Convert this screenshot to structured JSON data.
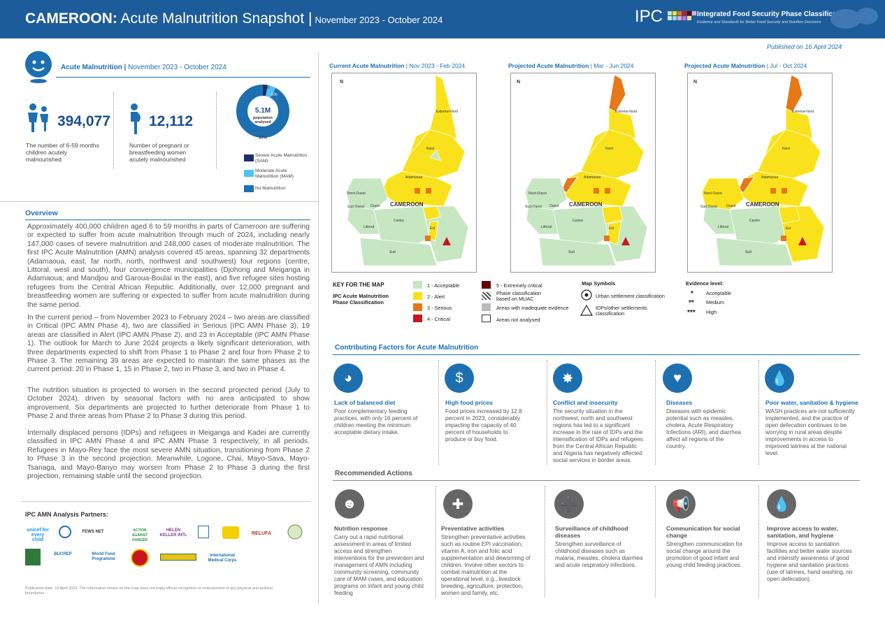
{
  "header": {
    "country": "CAMEROON:",
    "title": "Acute Malnutrition Snapshot |",
    "period": "November 2023 - October 2024",
    "ipc_logo": "IPC",
    "ipc_name": "Integrated Food Security Phase Classification",
    "ipc_tagline": "Evidence and Standards for Better Food Security and Nutrition Decisions"
  },
  "published": "Published on 16 April 2024",
  "acute_section": {
    "label": "Acute Malnutrition |",
    "period": "November 2023 - October 2024",
    "children_value": "394,077",
    "children_desc": "The number of 6-59 months children acutely malnourished",
    "women_value": "12,112",
    "women_desc": "Number of pregnant or breastfeeding women acutely malnourished",
    "donut_center_value": "5.1M",
    "donut_center_label": "population analysed",
    "donut_pct_sam": "3%",
    "donut_pct_mam": "5%",
    "donut_pct_none": "92%",
    "donut_values": {
      "sam": 3,
      "mam": 5,
      "none": 92
    },
    "legend": [
      {
        "label": "Severe Acute Malnutrition (SAM)",
        "color": "#1c2f6b"
      },
      {
        "label": "Moderate Acute Malnutrition (MAM)",
        "color": "#4fc3f7"
      },
      {
        "label": "No Malnutrition",
        "color": "#1d6fb0"
      }
    ]
  },
  "overview": {
    "title": "Overview",
    "p1": "Approximately 400,000 children aged 6 to 59 months in parts of Cameroon are suffering or expected to suffer from acute malnutrition through much of 2024, including nearly 147,000 cases of severe malnutrition and 248,000 cases of moderate malnutrition. The first IPC Acute Malnutrition (AMN) analysis covered 45 areas, spanning 32 departments (Adamaoua, east, far north, north, northwest and southwest) four regions (centre, Littoral, west and south), four convergence municipalities (Djohong and Meiganga in Adamaoua; and Mandjou and Garoua-Boulaï in the east), and five refugee sites hosting refugees from the Central African Republic. Additionally, over 12,000 pregnant and breastfeeding women are suffering or expected to suffer from acute malnutrition during the same period.",
    "p2": "In the current period – from November 2023 to February 2024 – two areas are classified in Critical (IPC AMN Phase 4), two are classified in Serious (IPC AMN Phase 3), 19 areas are classified in Alert (IPC AMN Phase 2), and 23 in Acceptable (IPC AMN Phase 1). The outlook for March to June 2024 projects a likely significant deterioration, with three departments expected to shift from Phase 1 to Phase 2 and four from Phase 2 to Phase 3. The remaining 39 areas are expected to maintain the same phases as the current period: 20 in Phase 1, 15 in Phase 2, two in Phase 3, and two in Phase 4.",
    "p3": "The nutrition situation is projected to worsen in the second projected period (July to October 2024), driven by seasonal factors with no area anticipated to show improvement. Six departments are projected to further deteriorate from Phase 1 to Phase 2 and three areas from Phase 2 to Phase 3 during this period.",
    "p4": "Internally displaced persons (IDPs) and refugees in Meiganga and Kadei are currently classified in IPC AMN Phase 4 and IPC AMN Phase 3 respectively, in all periods. Refugees in Mayo-Rey face the most severe AMN situation, transitioning from Phase 2 to Phase 3 in the second projection. Meanwhile, Logone, Chai, Mayo-Sava, Mayo-Tsanaga, and Mayo-Banyo may worsen from Phase 2 to Phase 3 during the first projection, remaining stable until the second projection."
  },
  "partners": {
    "title": "IPC AMN Analysis Partners:",
    "row1": [
      "unicef for every child",
      "",
      "FEWS NET",
      "ACTION AGAINST HUNGER",
      "HELEN KELLER INTL",
      "",
      "",
      "RELUFA",
      ""
    ],
    "row2": [
      "",
      "BUCREP",
      "World Food Programme",
      "",
      "",
      "International Medical Corps"
    ]
  },
  "footer_note": "Publication date: 16 April 2024. The information shown on this map does not imply official recognition or endorsement of any physical and political boundaries.",
  "maps": [
    {
      "title": "Current Acute Malnutrition",
      "period": "| Nov 2023 - Feb 2024"
    },
    {
      "title": "Projected Acute Malnutrition",
      "period": "| Mar - Jun 2024"
    },
    {
      "title": "Projected Acute Malnutrition",
      "period": "| Jul - Oct 2024"
    }
  ],
  "map_labels": {
    "north_arrow": "N",
    "extreme_nord": "Extreme-Nord",
    "nord": "Nord",
    "adamaoua": "Adamaoua",
    "nord_ouest": "Nord-Ouest",
    "sud_ouest": "Sud-Ouest",
    "ouest": "Ouest",
    "littoral": "Littoral",
    "centre": "Centre",
    "est": "Est",
    "sud": "Sud",
    "cameroon": "CAMEROON"
  },
  "map_key": {
    "title": "KEY FOR THE MAP",
    "subtitle": "IPC Acute Malnutrition Phase Classification",
    "phases": [
      {
        "label": "1 - Acceptable",
        "color": "#c6e7c2"
      },
      {
        "label": "2 - Alert",
        "color": "#f9e21c"
      },
      {
        "label": "3 - Serious",
        "color": "#e67817"
      },
      {
        "label": "4 - Critical",
        "color": "#c8161d"
      },
      {
        "label": "5 - Extremely critical",
        "color": "#640000"
      }
    ],
    "muac": "Phase classification based on MUAC",
    "inadequate": "Areas with inadequate evidence",
    "not_analysed": "Areas not analysed",
    "symbols_title": "Map Symbols",
    "urban": "Urban settlement classification",
    "idps": "IDPs/other settlements classification",
    "evidence_title": "Evidence level:",
    "evidence": [
      {
        "stars": "*",
        "label": "Acceptable"
      },
      {
        "stars": "**",
        "label": "Medium"
      },
      {
        "stars": "***",
        "label": "High"
      }
    ]
  },
  "contributing": {
    "title": "Contributing Factors for Acute Malnutrition",
    "items": [
      {
        "title": "Lack of balanced diet",
        "text": "Poor complementary feeding practices, with only 16 percent of children meeting the minimum acceptable dietary intake."
      },
      {
        "title": "High food prices",
        "text": "Food prices increased by 12.8 percent in 2023, considerably impacting the capacity of 40 percent of households to produce or buy food."
      },
      {
        "title": "Conflict and insecurity",
        "text": "The security situation in the northwest, north and southwest regions has led to a significant increase in the rate of IDPs and the intensification of IDPs and refugees from the Central African Republic and Nigeria has negatively affected social services in border areas."
      },
      {
        "title": "Diseases",
        "text": "Diseases with epidemic potential such as measles, cholera, Acute Respiratory Infections (ARI), and diarrhea affect all regions of the country."
      },
      {
        "title": "Poor water, sanitation & hygiene",
        "text": "WASH practices are not sufficiently implemented, and the practice of open defecation continues to be worrying in rural areas despite improvements in access to improved latrines at the national level."
      }
    ]
  },
  "recommended": {
    "title": "Recommended Actions",
    "items": [
      {
        "title": "Nutrition response",
        "text": "Carry out a rapid nutritional assessment in areas of limited access and strengthen interventions for the prevention and management of AMN including community screening, community care of MAM cases, and education programs on infant and young child feeding"
      },
      {
        "title": "Preventative activities",
        "text": "Strengthen preventative activities such as routine EPI vaccination, vitamin A, iron and folic acid supplementation and deworming of children. Involve other sectors to combat malnutrition at the operational level, e.g., livestock breeding, agriculture, protection, women and family, etc."
      },
      {
        "title": "Surveillance of childhood diseases",
        "text": "Strengthen surveillance of childhood diseases such as malaria, measles, cholera diarrhea and acute respiratory infections."
      },
      {
        "title": "Communication for social change",
        "text": "Strengthen communication for social change around the promotion of good infant and young child feeding practices."
      },
      {
        "title": "Improve access to water, sanitation, and hygiene",
        "text": "Improve access to sanitation facilities and better water sources and intensify awareness of good hygiene and sanitation practices (use of latrines, hand washing, no open defecation)."
      }
    ]
  }
}
